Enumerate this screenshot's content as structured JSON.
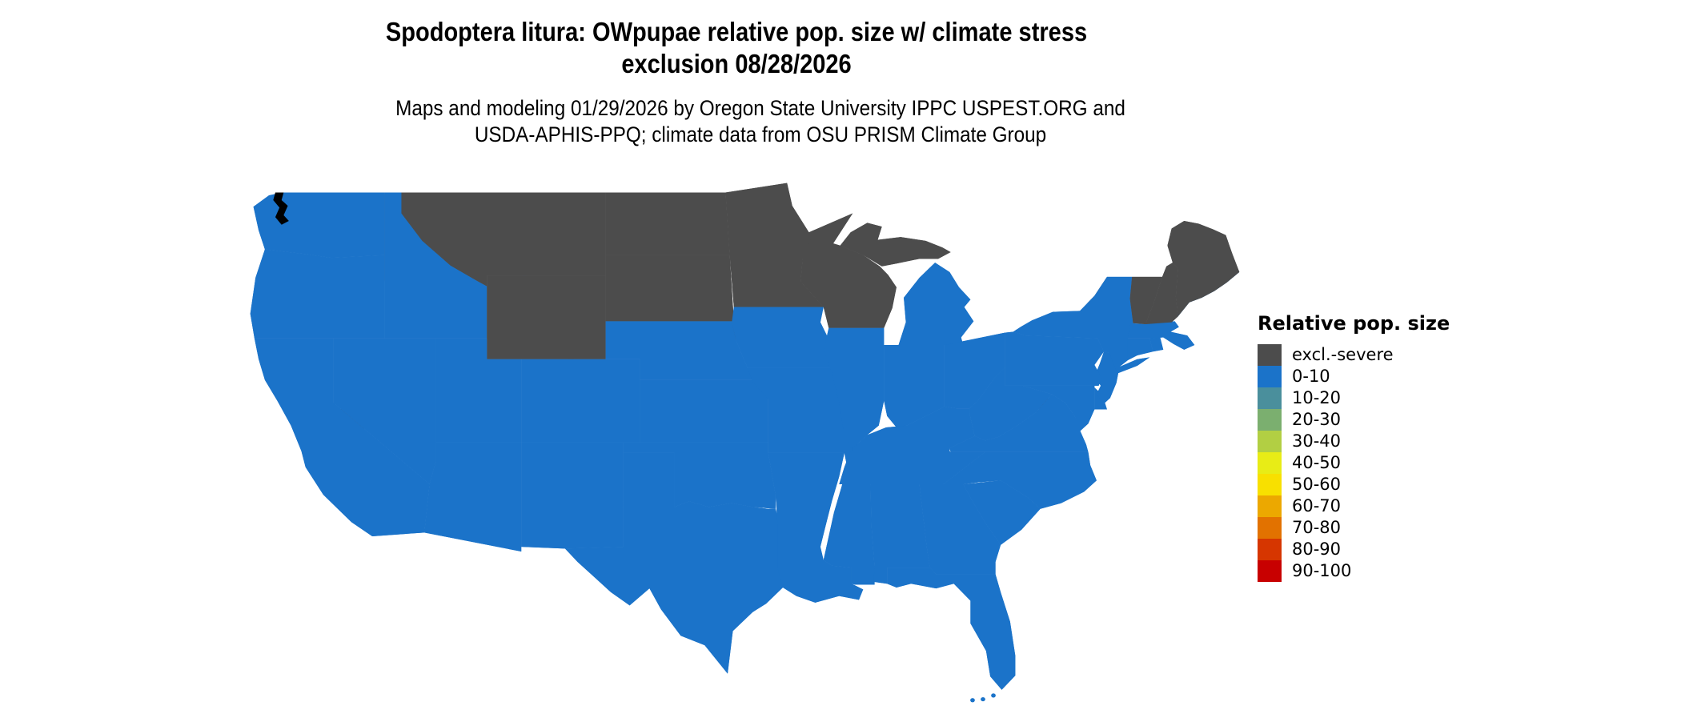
{
  "title": {
    "line1": "Spodoptera litura: OWpupae relative pop. size w/ climate stress",
    "line2": "exclusion 08/28/2026"
  },
  "subtitle": {
    "line1": "Maps and modeling 01/29/2026 by Oregon State University IPPC USPEST.ORG and",
    "line2": "USDA-APHIS-PPQ; climate data from OSU PRISM Climate Group"
  },
  "legend": {
    "title": "Relative pop. size",
    "items": [
      {
        "key": "excl",
        "label": "excl.-severe",
        "color": "#4C4C4C"
      },
      {
        "key": "b0",
        "label": "0-10",
        "color": "#1B73C9"
      },
      {
        "key": "b10",
        "label": "10-20",
        "color": "#4A8F9C"
      },
      {
        "key": "b20",
        "label": "20-30",
        "color": "#7BAF6F"
      },
      {
        "key": "b30",
        "label": "30-40",
        "color": "#B2CF43"
      },
      {
        "key": "b40",
        "label": "40-50",
        "color": "#E8EC16"
      },
      {
        "key": "b50",
        "label": "50-60",
        "color": "#F8E000"
      },
      {
        "key": "b60",
        "label": "60-70",
        "color": "#ECA800"
      },
      {
        "key": "b70",
        "label": "70-80",
        "color": "#E27200"
      },
      {
        "key": "b80",
        "label": "80-90",
        "color": "#D63600"
      },
      {
        "key": "b90",
        "label": "90-100",
        "color": "#C80000"
      }
    ]
  },
  "map": {
    "border_color": "#000000",
    "water_color": "#FFFFFF",
    "states": {
      "WA": "b0",
      "OR": "b0",
      "CA": "b0",
      "NV": "b0",
      "ID": "b0",
      "MT": "excl",
      "WY": "excl",
      "UT": "b0",
      "CO": "b0",
      "AZ": "b0",
      "NM": "b0",
      "ND": "excl",
      "SD": "excl",
      "NE": "b0",
      "KS": "b0",
      "OK": "b0",
      "TX": "b0",
      "MN": "excl",
      "IA": "b0",
      "MO": "b0",
      "AR": "b0",
      "LA": "b0",
      "WI": "excl",
      "IL": "b0",
      "MIUP": "excl",
      "MI": "b0",
      "IN": "b0",
      "OH": "b0",
      "KY": "b0",
      "TN": "b0",
      "MS": "b0",
      "AL": "b0",
      "GA": "b0",
      "FL": "b0",
      "SC": "b0",
      "NC": "b0",
      "VA": "b0",
      "WV": "b0",
      "MD": "b0",
      "DE": "b0",
      "NJ": "b0",
      "PA": "b0",
      "NY": "b0",
      "CT": "b0",
      "RI": "b0",
      "MA": "b0",
      "VT": "excl",
      "NH": "excl",
      "ME": "excl"
    },
    "patches": {
      "pID": "excl",
      "pWA1": "excl",
      "pWA2": "excl",
      "pOR1": "excl",
      "pOR2": "excl",
      "pCA1": "excl",
      "pNV1": "excl",
      "pNV2": "excl",
      "pUT1": "excl",
      "pUT2": "excl",
      "pUT3": "excl",
      "pCO1": "excl",
      "pNM1": "excl",
      "pNM2": "excl",
      "pIA1": "excl",
      "pNE1": "excl",
      "pIL1": "excl",
      "pMIL1": "excl",
      "pNY1": "excl",
      "pNY2": "excl",
      "pPA1": "excl",
      "pPA2": "excl",
      "pWV1": "excl",
      "bMT1": "b0",
      "bMT2": "b0",
      "bMT3": "b0",
      "bMT4": "b0",
      "bMT5": "b0",
      "bMT6": "b0",
      "bWY1": "b0",
      "bWY2": "b0",
      "bWY3": "b0",
      "bSD1": "b0",
      "bSD2": "b0",
      "bME1": "b0",
      "kFL1": "b0",
      "kFL2": "b0",
      "kFL3": "b0",
      "yWA1": "b40",
      "yWA2": "b40",
      "yWA3": "b40"
    }
  }
}
